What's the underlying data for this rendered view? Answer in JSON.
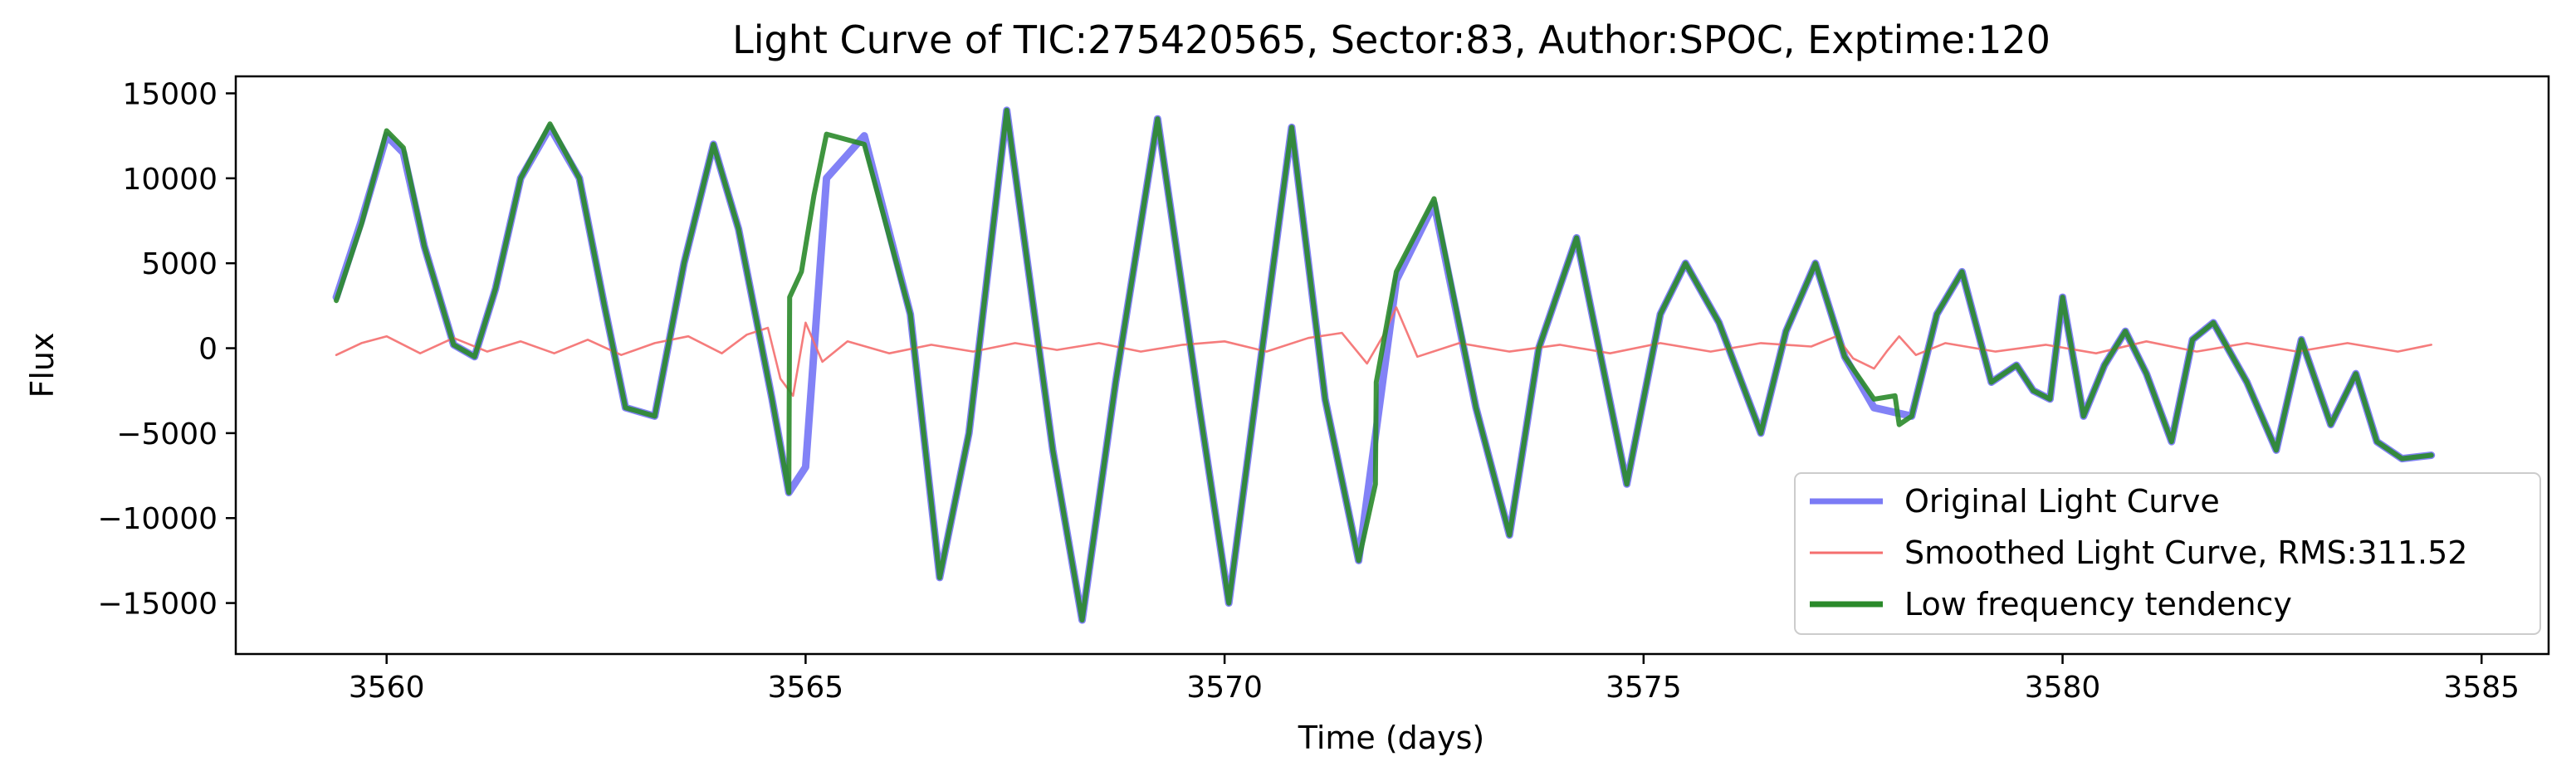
{
  "chart_data": {
    "type": "line",
    "title": "Light Curve of TIC:275420565, Sector:83, Author:SPOC, Exptime:120",
    "xlabel": "Time (days)",
    "ylabel": "Flux",
    "xlim": [
      3558.2,
      3585.8
    ],
    "ylim": [
      -18000,
      16000
    ],
    "x_ticks": [
      3560,
      3565,
      3570,
      3575,
      3580,
      3585
    ],
    "y_ticks": [
      -15000,
      -10000,
      -5000,
      0,
      5000,
      10000,
      15000
    ],
    "grid": false,
    "legend_position": "lower-right",
    "series": [
      {
        "name": "Original Light Curve",
        "color": "#7b7bf5",
        "x": [
          3559.4,
          3559.7,
          3560.0,
          3560.2,
          3560.45,
          3560.8,
          3561.05,
          3561.3,
          3561.6,
          3561.95,
          3562.3,
          3562.6,
          3562.85,
          3563.2,
          3563.55,
          3563.9,
          3564.2,
          3564.6,
          3564.8,
          3565.0,
          3565.25,
          3565.7,
          3566.25,
          3566.6,
          3566.95,
          3567.4,
          3567.95,
          3568.3,
          3568.7,
          3569.2,
          3569.7,
          3570.05,
          3570.45,
          3570.8,
          3571.2,
          3571.6,
          3572.05,
          3572.5,
          3573.0,
          3573.4,
          3573.75,
          3574.2,
          3574.8,
          3575.2,
          3575.5,
          3575.9,
          3576.4,
          3576.7,
          3577.05,
          3577.4,
          3577.75,
          3578.2,
          3578.5,
          3578.8,
          3579.15,
          3579.45,
          3579.65,
          3579.85,
          3580.0,
          3580.25,
          3580.5,
          3580.75,
          3581.0,
          3581.3,
          3581.55,
          3581.8,
          3582.2,
          3582.55,
          3582.85,
          3583.2,
          3583.5,
          3583.75,
          3584.05,
          3584.4
        ],
        "y": [
          3000,
          7500,
          12500,
          11500,
          6000,
          200,
          -500,
          3500,
          10000,
          13000,
          10000,
          2500,
          -3500,
          -4000,
          5000,
          12000,
          7000,
          -3000,
          -8500,
          -7000,
          10000,
          12500,
          2000,
          -13500,
          -5000,
          14000,
          -6000,
          -16000,
          -2000,
          13500,
          -3500,
          -15000,
          0,
          13000,
          -3000,
          -12500,
          4000,
          8500,
          -3500,
          -11000,
          0,
          6500,
          -8000,
          2000,
          5000,
          1500,
          -5000,
          1000,
          5000,
          -500,
          -3500,
          -4000,
          2000,
          4500,
          -2000,
          -1000,
          -2500,
          -3000,
          3000,
          -4000,
          -1000,
          1000,
          -1500,
          -5500,
          500,
          1500,
          -2000,
          -6000,
          500,
          -4500,
          -1500,
          -5500,
          -6500,
          -6300
        ]
      },
      {
        "name": "Smoothed Light Curve, RMS:311.52",
        "color": "#f46e6e",
        "x": [
          3559.4,
          3559.7,
          3560.0,
          3560.4,
          3560.8,
          3561.2,
          3561.6,
          3562.0,
          3562.4,
          3562.8,
          3563.2,
          3563.6,
          3564.0,
          3564.3,
          3564.55,
          3564.7,
          3564.85,
          3565.0,
          3565.2,
          3565.5,
          3566.0,
          3566.5,
          3567.0,
          3567.5,
          3568.0,
          3568.5,
          3569.0,
          3569.5,
          3570.0,
          3570.5,
          3571.0,
          3571.4,
          3571.7,
          3571.9,
          3572.05,
          3572.3,
          3572.8,
          3573.4,
          3574.0,
          3574.6,
          3575.2,
          3575.8,
          3576.4,
          3577.0,
          3577.3,
          3577.5,
          3577.75,
          3577.9,
          3578.05,
          3578.25,
          3578.6,
          3579.2,
          3579.8,
          3580.4,
          3581.0,
          3581.6,
          3582.2,
          3582.8,
          3583.4,
          3584.0,
          3584.4
        ],
        "y": [
          -400,
          300,
          700,
          -300,
          600,
          -200,
          400,
          -300,
          500,
          -400,
          300,
          700,
          -300,
          800,
          1200,
          -1800,
          -2800,
          1500,
          -800,
          400,
          -300,
          200,
          -200,
          300,
          -100,
          300,
          -200,
          200,
          400,
          -200,
          600,
          900,
          -900,
          800,
          2400,
          -500,
          300,
          -200,
          200,
          -300,
          300,
          -200,
          300,
          100,
          700,
          -600,
          -1200,
          -200,
          700,
          -400,
          300,
          -200,
          200,
          -300,
          400,
          -200,
          300,
          -200,
          300,
          -200,
          200
        ]
      },
      {
        "name": "Low frequency tendency",
        "color": "#2a8a2a",
        "x": [
          3559.4,
          3559.7,
          3560.0,
          3560.2,
          3560.45,
          3560.8,
          3561.05,
          3561.3,
          3561.6,
          3561.95,
          3562.3,
          3562.6,
          3562.85,
          3563.2,
          3563.55,
          3563.9,
          3564.2,
          3564.6,
          3564.8,
          3564.81,
          3564.95,
          3565.1,
          3565.25,
          3565.7,
          3566.25,
          3566.6,
          3566.95,
          3567.4,
          3567.95,
          3568.3,
          3568.7,
          3569.2,
          3569.7,
          3570.05,
          3570.45,
          3570.8,
          3571.2,
          3571.6,
          3571.8,
          3571.81,
          3572.05,
          3572.5,
          3573.0,
          3573.4,
          3573.75,
          3574.2,
          3574.8,
          3575.2,
          3575.5,
          3575.9,
          3576.4,
          3576.7,
          3577.05,
          3577.4,
          3577.75,
          3578.0,
          3578.05,
          3578.2,
          3578.5,
          3578.8,
          3579.15,
          3579.45,
          3579.65,
          3579.85,
          3580.0,
          3580.25,
          3580.5,
          3580.75,
          3581.0,
          3581.3,
          3581.55,
          3581.8,
          3582.2,
          3582.55,
          3582.85,
          3583.2,
          3583.5,
          3583.75,
          3584.05,
          3584.4
        ],
        "y": [
          2800,
          7300,
          12800,
          11800,
          6000,
          200,
          -500,
          3500,
          10000,
          13200,
          10000,
          2500,
          -3500,
          -4000,
          5000,
          12000,
          7000,
          -3000,
          -8500,
          3000,
          4500,
          9000,
          12600,
          12000,
          2000,
          -13500,
          -5000,
          14000,
          -6000,
          -16000,
          -2000,
          13500,
          -3500,
          -15000,
          0,
          13000,
          -3000,
          -12500,
          -8000,
          -2000,
          4500,
          8800,
          -3500,
          -11000,
          0,
          6500,
          -8000,
          2000,
          5000,
          1500,
          -5000,
          1000,
          5000,
          -500,
          -3000,
          -2800,
          -4500,
          -4000,
          2000,
          4500,
          -2000,
          -1000,
          -2500,
          -3000,
          3000,
          -4000,
          -1000,
          1000,
          -1500,
          -5500,
          500,
          1500,
          -2000,
          -6000,
          500,
          -4500,
          -1500,
          -5500,
          -6500,
          -6300
        ]
      }
    ]
  }
}
